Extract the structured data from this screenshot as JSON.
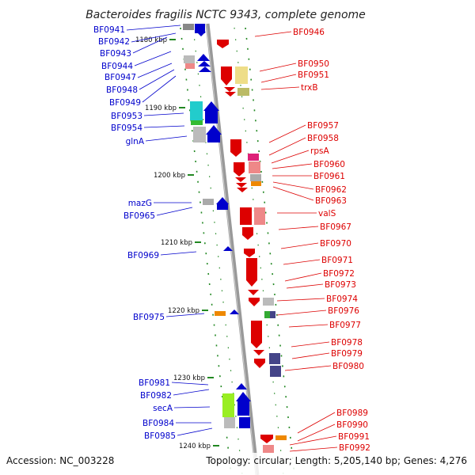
{
  "title": "Bacteroides fragilis NCTC 9343, complete genome",
  "footer": {
    "accession": "Accession: NC_003228",
    "summary": "Topology: circular; Length: 5,205,140 bp; Genes: 4,276"
  },
  "colors": {
    "forward": "#0000cc",
    "reverse": "#dd0000",
    "backbone": "#999999",
    "tick": "#228822"
  },
  "scale_labels": [
    "1180 kbp",
    "1190 kbp",
    "1200 kbp",
    "1210 kbp",
    "1220 kbp",
    "1230 kbp",
    "1240 kbp"
  ],
  "left_labels": [
    "BF0941",
    "BF0942",
    "BF0943",
    "BF0944",
    "BF0947",
    "BF0948",
    "BF0949",
    "BF0953",
    "BF0954",
    "glnA",
    "mazG",
    "BF0965",
    "BF0969",
    "BF0975",
    "BF0981",
    "BF0982",
    "secA",
    "BF0984",
    "BF0985"
  ],
  "right_labels": [
    "BF0946",
    "BF0950",
    "BF0951",
    "trxB",
    "BF0957",
    "BF0958",
    "rpsA",
    "BF0960",
    "BF0961",
    "BF0962",
    "BF0963",
    "valS",
    "BF0967",
    "BF0970",
    "BF0971",
    "BF0972",
    "BF0973",
    "BF0974",
    "BF0976",
    "BF0977",
    "BF0978",
    "BF0979",
    "BF0980",
    "BF0989",
    "BF0990",
    "BF0991",
    "BF0992"
  ]
}
